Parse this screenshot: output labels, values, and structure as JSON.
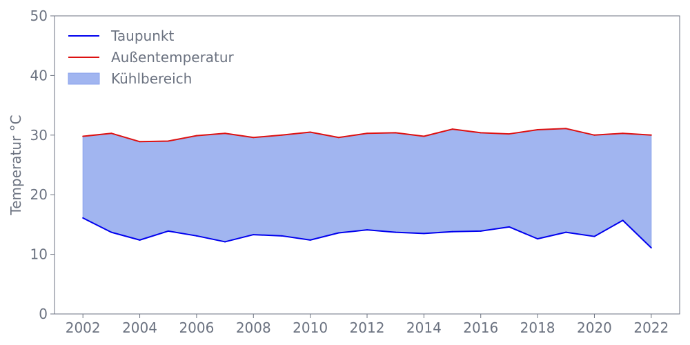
{
  "chart_data": {
    "type": "area",
    "title": "",
    "xlabel": "",
    "ylabel": "Temperatur °C",
    "xlim": [
      2001,
      2023
    ],
    "ylim": [
      0,
      50
    ],
    "x_ticks": [
      2002,
      2004,
      2006,
      2008,
      2010,
      2012,
      2014,
      2016,
      2018,
      2020,
      2022
    ],
    "y_ticks": [
      0,
      10,
      20,
      30,
      40,
      50
    ],
    "grid": false,
    "legend_position": "top-left",
    "x": [
      2002,
      2003,
      2004,
      2005,
      2006,
      2007,
      2008,
      2009,
      2010,
      2011,
      2012,
      2013,
      2014,
      2015,
      2016,
      2017,
      2018,
      2019,
      2020,
      2021,
      2022
    ],
    "series": [
      {
        "name": "Taupunkt",
        "kind": "line",
        "color": "#0000ee",
        "values": [
          16.1,
          13.7,
          12.4,
          13.9,
          13.1,
          12.1,
          13.3,
          13.1,
          12.4,
          13.6,
          14.1,
          13.7,
          13.5,
          13.8,
          13.9,
          14.6,
          12.6,
          13.7,
          13.0,
          15.7,
          11.1
        ]
      },
      {
        "name": "Außentemperatur",
        "kind": "line",
        "color": "#dd1111",
        "values": [
          29.8,
          30.3,
          28.9,
          29.0,
          29.9,
          30.3,
          29.6,
          30.0,
          30.5,
          29.6,
          30.3,
          30.4,
          29.8,
          31.0,
          30.4,
          30.2,
          30.9,
          31.1,
          30.0,
          30.3,
          30.0
        ]
      },
      {
        "name": "Kühlbereich",
        "kind": "fill_between",
        "color": "#8aa2ec",
        "between": [
          "Taupunkt",
          "Außentemperatur"
        ]
      }
    ]
  }
}
